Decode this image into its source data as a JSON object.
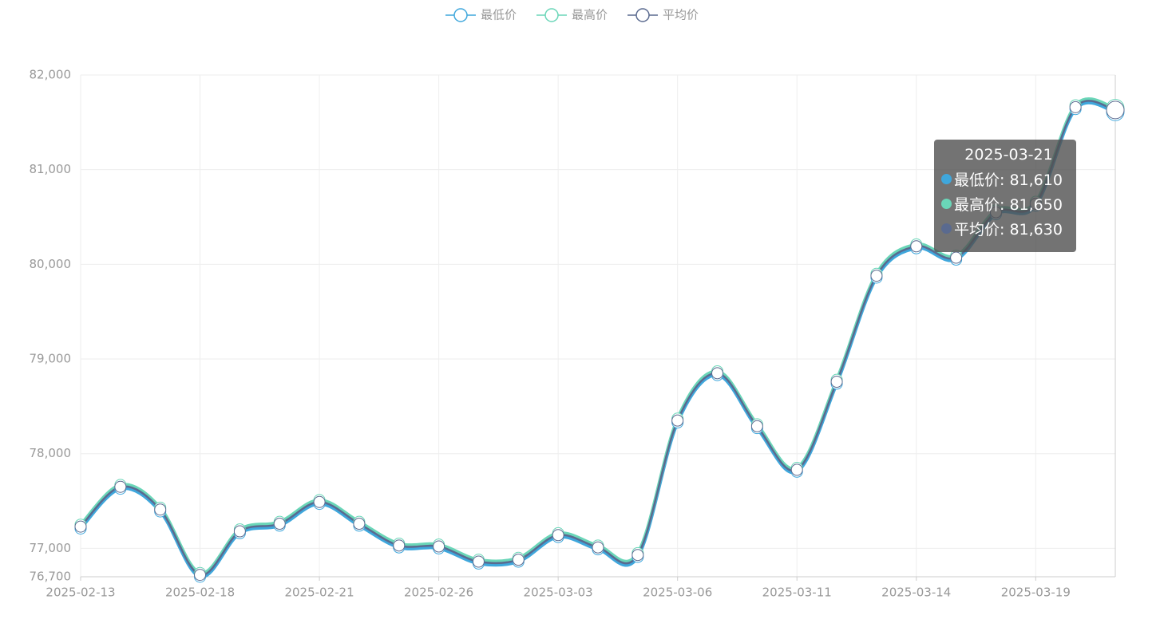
{
  "chart_data": {
    "type": "line",
    "categories": [
      "2025-02-13",
      null,
      null,
      "2025-02-18",
      null,
      null,
      "2025-02-21",
      null,
      null,
      "2025-02-26",
      null,
      null,
      "2025-03-03",
      null,
      null,
      "2025-03-06",
      null,
      null,
      "2025-03-11",
      null,
      null,
      "2025-03-14",
      null,
      null,
      "2025-03-19",
      null,
      "2025-03-21"
    ],
    "series": [
      {
        "name": "最低价",
        "color": "#3fa7dc",
        "values": [
          77210,
          77630,
          77390,
          76700,
          77160,
          77240,
          77470,
          77240,
          77010,
          77000,
          76840,
          76860,
          77120,
          76990,
          76910,
          78330,
          78830,
          78270,
          77810,
          78740,
          79860,
          80170,
          80050,
          80530,
          80620,
          81640,
          81610
        ]
      },
      {
        "name": "最高价",
        "color": "#6ad6b8",
        "values": [
          77250,
          77670,
          77430,
          76740,
          77200,
          77280,
          77510,
          77280,
          77050,
          77040,
          76880,
          76900,
          77160,
          77030,
          76950,
          78370,
          78870,
          78310,
          77850,
          78780,
          79900,
          80210,
          80090,
          80570,
          80660,
          81680,
          81650
        ]
      },
      {
        "name": "平均价",
        "color": "#5a6a8f",
        "values": [
          77230,
          77650,
          77410,
          76720,
          77180,
          77260,
          77490,
          77260,
          77030,
          77020,
          76860,
          76880,
          77140,
          77010,
          76930,
          78350,
          78850,
          78290,
          77830,
          78760,
          79880,
          80190,
          80070,
          80550,
          80640,
          81660,
          81630
        ]
      }
    ],
    "ylim": [
      76700,
      82000
    ],
    "yticks": [
      {
        "value": 76700,
        "label": "76,700"
      },
      {
        "value": 77000,
        "label": "77,000"
      },
      {
        "value": 78000,
        "label": "78,000"
      },
      {
        "value": 79000,
        "label": "79,000"
      },
      {
        "value": 80000,
        "label": "80,000"
      },
      {
        "value": 81000,
        "label": "81,000"
      },
      {
        "value": 82000,
        "label": "82,000"
      }
    ],
    "grid": true,
    "legend": "top",
    "tooltip": {
      "rows": [
        "最低价: 81,610",
        "最高价: 81,650",
        "平均价: 81,630"
      ]
    }
  }
}
